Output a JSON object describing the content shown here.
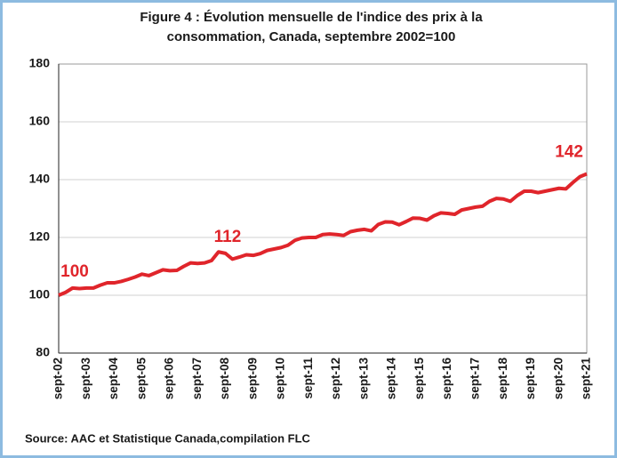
{
  "chart_data": {
    "type": "line",
    "title": [
      "Figure 4 : Évolution mensuelle de l'indice des prix à la",
      "consommation, Canada, septembre 2002=100"
    ],
    "source": "Source: AAC et Statistique Canada,compilation FLC",
    "categories": [
      "sept-02",
      null,
      null,
      null,
      "sept-03",
      null,
      null,
      null,
      "sept-04",
      null,
      null,
      null,
      "sept-05",
      null,
      null,
      null,
      "sept-06",
      null,
      null,
      null,
      "sept-07",
      null,
      null,
      null,
      "sept-08",
      null,
      null,
      null,
      "sept-09",
      null,
      null,
      null,
      "sept-10",
      null,
      null,
      null,
      "sept-11",
      null,
      null,
      null,
      "sept-12",
      null,
      null,
      null,
      "sept-13",
      null,
      null,
      null,
      "sept-14",
      null,
      null,
      null,
      "sept-15",
      null,
      null,
      null,
      "sept-16",
      null,
      null,
      null,
      "sept-17",
      null,
      null,
      null,
      "sept-18",
      null,
      null,
      null,
      "sept-19",
      null,
      null,
      null,
      "sept-20",
      null,
      null,
      null,
      "sept-21"
    ],
    "series": [
      {
        "color": "#e0252b",
        "values": [
          100,
          101,
          102.5,
          102.3,
          102.5,
          102.5,
          103.5,
          104.3,
          104.3,
          104.8,
          105.5,
          106.3,
          107.3,
          106.8,
          107.8,
          108.8,
          108.5,
          108.6,
          110,
          111.2,
          111,
          111.2,
          112,
          115,
          114.5,
          112.5,
          113.2,
          114,
          113.8,
          114.4,
          115.5,
          116,
          116.5,
          117.3,
          119,
          119.8,
          120,
          120,
          121,
          121.2,
          121,
          120.7,
          122,
          122.5,
          122.8,
          122.3,
          124.5,
          125.4,
          125.3,
          124.4,
          125.5,
          126.7,
          126.6,
          126,
          127.5,
          128.5,
          128.3,
          128,
          129.5,
          130,
          130.5,
          130.8,
          132.5,
          133.5,
          133.3,
          132.5,
          134.5,
          136,
          136,
          135.5,
          136,
          136.5,
          137,
          136.8,
          139,
          141,
          142
        ],
        "value_labels": [
          "100",
          null,
          null,
          null,
          null,
          null,
          null,
          null,
          null,
          null,
          null,
          null,
          null,
          null,
          null,
          null,
          null,
          null,
          null,
          null,
          null,
          null,
          "112",
          null,
          null,
          null,
          null,
          null,
          null,
          null,
          null,
          null,
          null,
          null,
          null,
          null,
          null,
          null,
          null,
          null,
          null,
          null,
          null,
          null,
          null,
          null,
          null,
          null,
          null,
          null,
          null,
          null,
          null,
          null,
          null,
          null,
          null,
          null,
          null,
          null,
          null,
          null,
          null,
          null,
          null,
          null,
          null,
          null,
          null,
          null,
          null,
          null,
          null,
          null,
          null,
          null,
          "142"
        ]
      }
    ],
    "ylim": [
      80,
      180
    ],
    "yticks": [
      80,
      100,
      120,
      140,
      160,
      180
    ],
    "grid": true
  }
}
